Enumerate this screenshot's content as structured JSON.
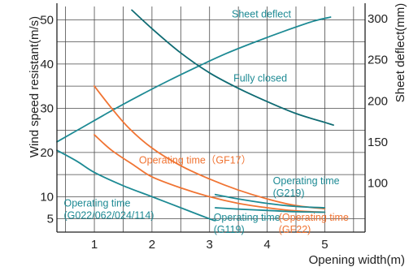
{
  "chart_data": {
    "type": "line",
    "title": "",
    "xlabel": "Opening width(m)",
    "ylabel": "Wind speed resistant(m/s)",
    "y2label": "Sheet deflect(mm)",
    "xlim": [
      0.35,
      5.7
    ],
    "ylim": [
      2,
      53
    ],
    "y2lim": [
      40,
      315
    ],
    "x_ticks": [
      1,
      2,
      3,
      4,
      5
    ],
    "y_ticks": [
      5,
      10,
      20,
      30,
      40,
      50
    ],
    "y2_ticks": [
      100,
      150,
      200,
      250,
      300
    ],
    "grid": true,
    "legend": "none",
    "colors": {
      "teal": "#1d8a94",
      "orange": "#f07433",
      "dark_teal": "#0f6b73",
      "axis": "#222222"
    },
    "series": [
      {
        "name": "Sheet deflect",
        "axis": "right",
        "color": "#1d8a94",
        "points": [
          [
            0.35,
            150
          ],
          [
            0.8,
            168
          ],
          [
            1.3,
            188
          ],
          [
            1.8,
            207
          ],
          [
            2.3,
            225
          ],
          [
            2.8,
            242
          ],
          [
            3.3,
            258
          ],
          [
            3.8,
            272
          ],
          [
            4.3,
            285
          ],
          [
            4.8,
            297
          ],
          [
            5.1,
            302
          ]
        ]
      },
      {
        "name": "Fully closed",
        "axis": "left",
        "color": "#0f6b73",
        "points": [
          [
            1.65,
            52.2
          ],
          [
            2.0,
            48.0
          ],
          [
            2.5,
            42.5
          ],
          [
            3.0,
            38.0
          ],
          [
            3.5,
            34.5
          ],
          [
            4.0,
            31.5
          ],
          [
            4.5,
            28.8
          ],
          [
            5.0,
            26.8
          ],
          [
            5.15,
            26.2
          ]
        ]
      },
      {
        "name": "Operating time (GF17)",
        "axis": "left",
        "color": "#f07433",
        "points": [
          [
            1.0,
            35.0
          ],
          [
            1.3,
            30.0
          ],
          [
            1.6,
            25.5
          ],
          [
            2.0,
            21.0
          ],
          [
            2.5,
            17.0
          ],
          [
            3.0,
            14.0
          ],
          [
            3.5,
            11.5
          ],
          [
            4.0,
            9.5
          ],
          [
            4.5,
            8.0
          ],
          [
            5.0,
            7.3
          ]
        ]
      },
      {
        "name": "Operating time (GF22)",
        "axis": "left",
        "color": "#f07433",
        "points": [
          [
            1.0,
            24.0
          ],
          [
            1.3,
            20.5
          ],
          [
            1.7,
            17.0
          ],
          [
            2.0,
            14.5
          ],
          [
            2.5,
            12.0
          ],
          [
            3.0,
            10.0
          ],
          [
            3.5,
            8.5
          ],
          [
            4.0,
            7.5
          ],
          [
            4.5,
            6.8
          ],
          [
            5.0,
            6.5
          ]
        ]
      },
      {
        "name": "Operating time (G219)",
        "axis": "left",
        "color": "#1d8a94",
        "points": [
          [
            3.1,
            10.5
          ],
          [
            3.5,
            9.5
          ],
          [
            4.0,
            8.5
          ],
          [
            4.5,
            7.8
          ],
          [
            5.0,
            7.5
          ]
        ]
      },
      {
        "name": "Operating time (G119)",
        "axis": "left",
        "color": "#1d8a94",
        "points": [
          [
            3.1,
            7.5
          ],
          [
            3.5,
            7.2
          ],
          [
            4.0,
            6.9
          ],
          [
            4.5,
            6.6
          ],
          [
            5.0,
            6.5
          ]
        ]
      },
      {
        "name": "Operating time (G022/062/024/114)",
        "axis": "left",
        "color": "#1d8a94",
        "points": [
          [
            0.35,
            20.5
          ],
          [
            0.7,
            18.0
          ],
          [
            1.0,
            15.5
          ],
          [
            1.5,
            12.5
          ],
          [
            2.0,
            10.0
          ],
          [
            2.5,
            7.5
          ],
          [
            3.0,
            5.0
          ],
          [
            3.1,
            4.6
          ]
        ]
      }
    ],
    "annotations": [
      {
        "lines": [
          "Sheet deflect"
        ],
        "x": 3.9,
        "y": 50.5,
        "color": "#1d8a94"
      },
      {
        "lines": [
          "Fully closed"
        ],
        "x": 3.88,
        "y": 36.0,
        "color": "#1d8a94"
      },
      {
        "lines": [
          "Operating time（GF17）"
        ],
        "x": 2.75,
        "y": 17.5,
        "color": "#f07433"
      },
      {
        "lines": [
          "Operating time",
          "(G219)"
        ],
        "x": 4.63,
        "y": 12.8,
        "color": "#1d8a94",
        "align": "left_edge",
        "lx": 4.1
      },
      {
        "lines": [
          "Operating time",
          "(G022/062/024/114)"
        ],
        "x": 0.85,
        "y": 7.8,
        "color": "#1d8a94",
        "align": "left_edge",
        "lx": 0.47
      },
      {
        "lines": [
          "Operating time",
          "(G119)"
        ],
        "x": 3.55,
        "y": 4.6,
        "color": "#1d8a94",
        "align": "left_edge",
        "lx": 3.07
      },
      {
        "lines": [
          "(Operating time",
          "(GF22)"
        ],
        "x": 4.6,
        "y": 4.6,
        "color": "#f07433",
        "align": "left_edge",
        "lx": 4.2
      }
    ]
  }
}
